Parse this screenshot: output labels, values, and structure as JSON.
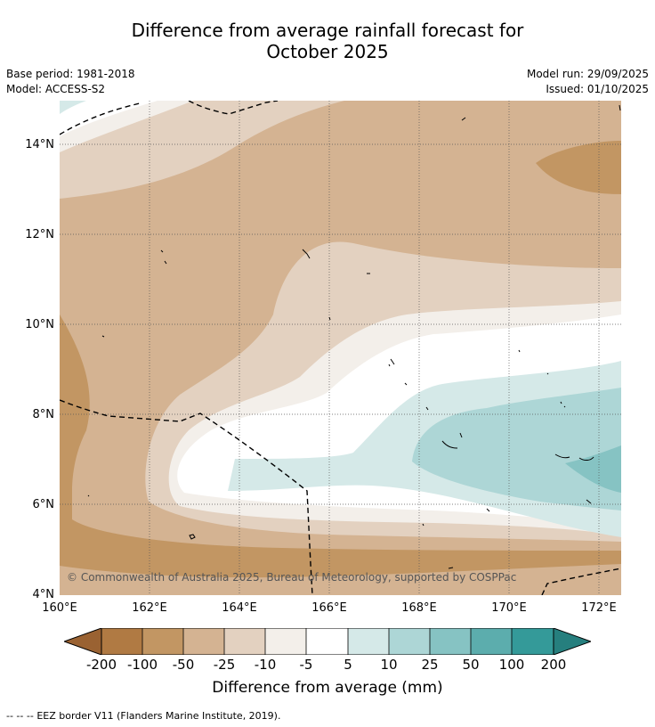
{
  "title": {
    "line1": "Difference from average rainfall forecast for",
    "line2": "October 2025"
  },
  "meta": {
    "base_period": "Base period: 1981-2018",
    "model": "Model: ACCESS-S2",
    "model_run": "Model run: 29/09/2025",
    "issued": "Issued: 01/10/2025"
  },
  "axes": {
    "lat_labels": [
      "14°N",
      "12°N",
      "10°N",
      "8°N",
      "6°N",
      "4°N"
    ],
    "lon_labels": [
      "160°E",
      "162°E",
      "164°E",
      "166°E",
      "168°E",
      "170°E",
      "172°E"
    ]
  },
  "copyright": "© Commonwealth of Australia 2025, Bureau of Meteorology, supported by COSPPac",
  "colorbar": {
    "labels": [
      "-200",
      "-100",
      "-50",
      "-25",
      "-10",
      "-5",
      "5",
      "10",
      "25",
      "50",
      "100",
      "200"
    ],
    "title": "Difference from average (mm)",
    "colors": {
      "below_min": "#9a6232",
      "m200_m100": "#b07a43",
      "m100_m50": "#c29663",
      "m50_m25": "#d4b392",
      "m25_m10": "#e3d1c0",
      "m10_m5": "#f3efea",
      "m5_p5": "#ffffff",
      "p5_p10": "#d5e9e8",
      "p10_p25": "#add6d6",
      "p25_p50": "#86c3c3",
      "p50_p100": "#5cadad",
      "p100_p200": "#349a99",
      "above_max": "#267f7e"
    }
  },
  "legend": {
    "symbol": "-- -- --",
    "text": "EEZ border V11 (Flanders Marine Institute, 2019)."
  }
}
